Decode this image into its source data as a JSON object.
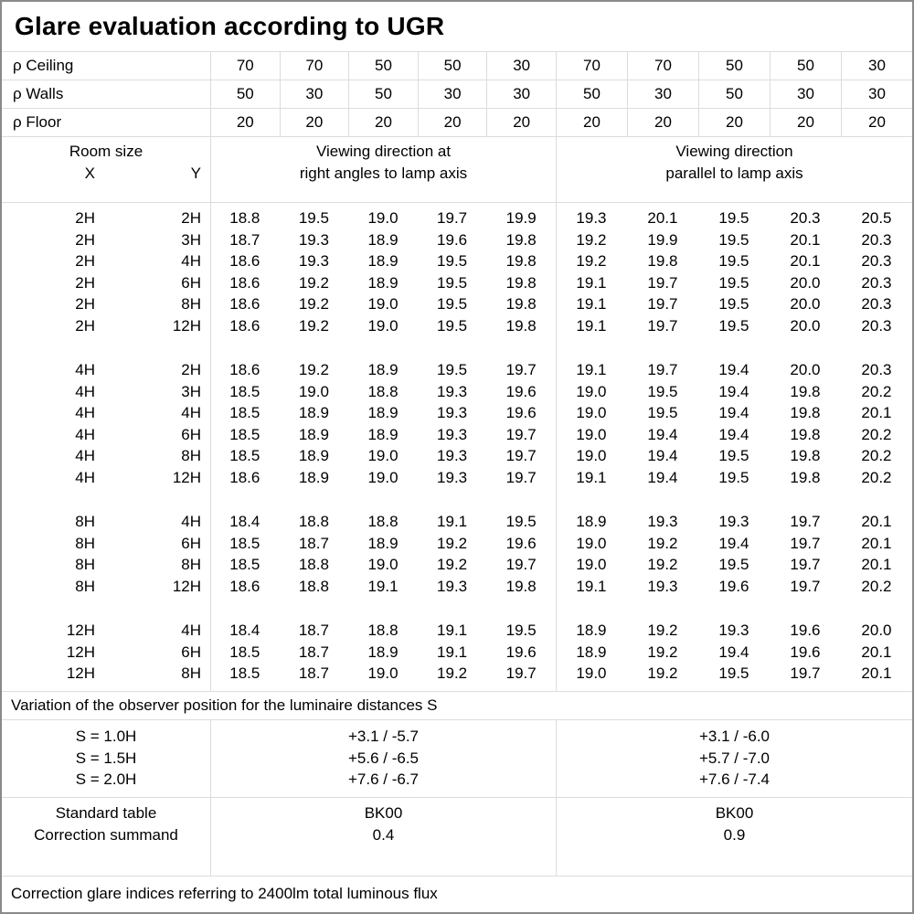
{
  "title": "Glare evaluation according to UGR",
  "reflectances": {
    "rows": [
      {
        "label": "ρ Ceiling",
        "values": [
          "70",
          "70",
          "50",
          "50",
          "30",
          "70",
          "70",
          "50",
          "50",
          "30"
        ]
      },
      {
        "label": "ρ Walls",
        "values": [
          "50",
          "30",
          "50",
          "30",
          "30",
          "50",
          "30",
          "50",
          "30",
          "30"
        ]
      },
      {
        "label": "ρ Floor",
        "values": [
          "20",
          "20",
          "20",
          "20",
          "20",
          "20",
          "20",
          "20",
          "20",
          "20"
        ]
      }
    ]
  },
  "header": {
    "room_size_label": "Room size",
    "x_label": "X",
    "y_label": "Y",
    "group1_line1": "Viewing direction at",
    "group1_line2": "right angles to lamp axis",
    "group2_line1": "Viewing direction",
    "group2_line2": "parallel to lamp axis"
  },
  "ugr_groups": [
    {
      "rows": [
        {
          "x": "2H",
          "y": "2H",
          "values": [
            "18.8",
            "19.5",
            "19.0",
            "19.7",
            "19.9",
            "19.3",
            "20.1",
            "19.5",
            "20.3",
            "20.5"
          ]
        },
        {
          "x": "2H",
          "y": "3H",
          "values": [
            "18.7",
            "19.3",
            "18.9",
            "19.6",
            "19.8",
            "19.2",
            "19.9",
            "19.5",
            "20.1",
            "20.3"
          ]
        },
        {
          "x": "2H",
          "y": "4H",
          "values": [
            "18.6",
            "19.3",
            "18.9",
            "19.5",
            "19.8",
            "19.2",
            "19.8",
            "19.5",
            "20.1",
            "20.3"
          ]
        },
        {
          "x": "2H",
          "y": "6H",
          "values": [
            "18.6",
            "19.2",
            "18.9",
            "19.5",
            "19.8",
            "19.1",
            "19.7",
            "19.5",
            "20.0",
            "20.3"
          ]
        },
        {
          "x": "2H",
          "y": "8H",
          "values": [
            "18.6",
            "19.2",
            "19.0",
            "19.5",
            "19.8",
            "19.1",
            "19.7",
            "19.5",
            "20.0",
            "20.3"
          ]
        },
        {
          "x": "2H",
          "y": "12H",
          "values": [
            "18.6",
            "19.2",
            "19.0",
            "19.5",
            "19.8",
            "19.1",
            "19.7",
            "19.5",
            "20.0",
            "20.3"
          ]
        }
      ]
    },
    {
      "rows": [
        {
          "x": "4H",
          "y": "2H",
          "values": [
            "18.6",
            "19.2",
            "18.9",
            "19.5",
            "19.7",
            "19.1",
            "19.7",
            "19.4",
            "20.0",
            "20.3"
          ]
        },
        {
          "x": "4H",
          "y": "3H",
          "values": [
            "18.5",
            "19.0",
            "18.8",
            "19.3",
            "19.6",
            "19.0",
            "19.5",
            "19.4",
            "19.8",
            "20.2"
          ]
        },
        {
          "x": "4H",
          "y": "4H",
          "values": [
            "18.5",
            "18.9",
            "18.9",
            "19.3",
            "19.6",
            "19.0",
            "19.5",
            "19.4",
            "19.8",
            "20.1"
          ]
        },
        {
          "x": "4H",
          "y": "6H",
          "values": [
            "18.5",
            "18.9",
            "18.9",
            "19.3",
            "19.7",
            "19.0",
            "19.4",
            "19.4",
            "19.8",
            "20.2"
          ]
        },
        {
          "x": "4H",
          "y": "8H",
          "values": [
            "18.5",
            "18.9",
            "19.0",
            "19.3",
            "19.7",
            "19.0",
            "19.4",
            "19.5",
            "19.8",
            "20.2"
          ]
        },
        {
          "x": "4H",
          "y": "12H",
          "values": [
            "18.6",
            "18.9",
            "19.0",
            "19.3",
            "19.7",
            "19.1",
            "19.4",
            "19.5",
            "19.8",
            "20.2"
          ]
        }
      ]
    },
    {
      "rows": [
        {
          "x": "8H",
          "y": "4H",
          "values": [
            "18.4",
            "18.8",
            "18.8",
            "19.1",
            "19.5",
            "18.9",
            "19.3",
            "19.3",
            "19.7",
            "20.1"
          ]
        },
        {
          "x": "8H",
          "y": "6H",
          "values": [
            "18.5",
            "18.7",
            "18.9",
            "19.2",
            "19.6",
            "19.0",
            "19.2",
            "19.4",
            "19.7",
            "20.1"
          ]
        },
        {
          "x": "8H",
          "y": "8H",
          "values": [
            "18.5",
            "18.8",
            "19.0",
            "19.2",
            "19.7",
            "19.0",
            "19.2",
            "19.5",
            "19.7",
            "20.1"
          ]
        },
        {
          "x": "8H",
          "y": "12H",
          "values": [
            "18.6",
            "18.8",
            "19.1",
            "19.3",
            "19.8",
            "19.1",
            "19.3",
            "19.6",
            "19.7",
            "20.2"
          ]
        }
      ]
    },
    {
      "rows": [
        {
          "x": "12H",
          "y": "4H",
          "values": [
            "18.4",
            "18.7",
            "18.8",
            "19.1",
            "19.5",
            "18.9",
            "19.2",
            "19.3",
            "19.6",
            "20.0"
          ]
        },
        {
          "x": "12H",
          "y": "6H",
          "values": [
            "18.5",
            "18.7",
            "18.9",
            "19.1",
            "19.6",
            "18.9",
            "19.2",
            "19.4",
            "19.6",
            "20.1"
          ]
        },
        {
          "x": "12H",
          "y": "8H",
          "values": [
            "18.5",
            "18.7",
            "19.0",
            "19.2",
            "19.7",
            "19.0",
            "19.2",
            "19.5",
            "19.7",
            "20.1"
          ]
        }
      ]
    }
  ],
  "variation_note": "Variation of the observer position for the luminaire distances S",
  "s_section": {
    "labels": [
      "S = 1.0H",
      "S = 1.5H",
      "S = 2.0H"
    ],
    "group1": [
      "+3.1 / -5.7",
      "+5.6 / -6.5",
      "+7.6 / -6.7"
    ],
    "group2": [
      "+3.1 / -6.0",
      "+5.7 / -7.0",
      "+7.6 / -7.4"
    ]
  },
  "summary": {
    "labels": [
      "Standard table",
      "Correction summand"
    ],
    "group1": [
      "BK00",
      "0.4"
    ],
    "group2": [
      "BK00",
      "0.9"
    ]
  },
  "footer_note": "Correction glare indices referring to 2400lm total luminous flux"
}
